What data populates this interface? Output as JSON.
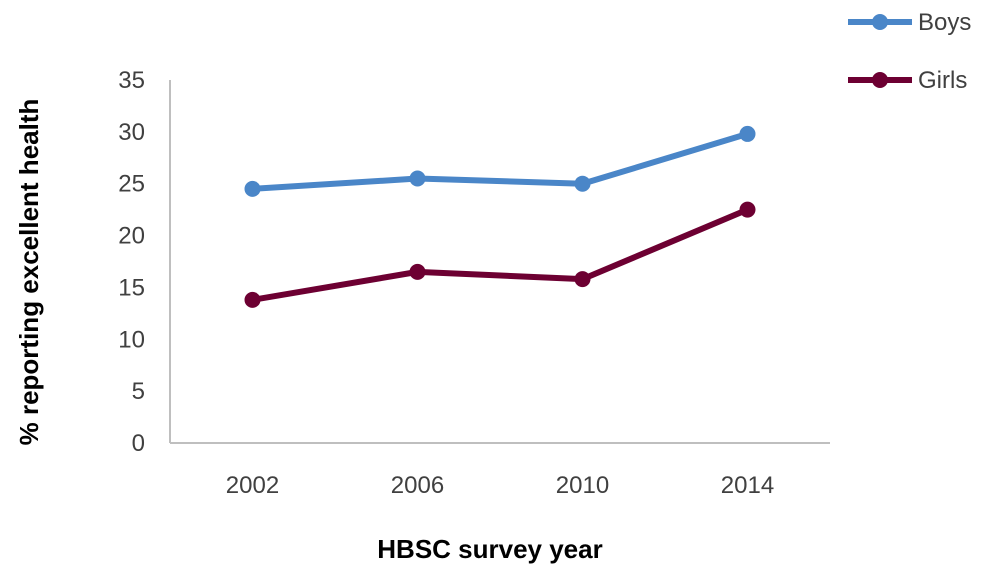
{
  "chart_data": {
    "type": "line",
    "title": "",
    "xlabel": "HBSC survey year",
    "ylabel": "% reporting excellent health",
    "categories": [
      "2002",
      "2006",
      "2010",
      "2014"
    ],
    "ylim": [
      0,
      35
    ],
    "yticks": [
      "0",
      "5",
      "10",
      "15",
      "20",
      "25",
      "30",
      "35"
    ],
    "grid": false,
    "legend_position": "top-right",
    "series": [
      {
        "name": "Boys",
        "color": "#4a86c8",
        "values": [
          24.5,
          25.5,
          25.0,
          29.8
        ]
      },
      {
        "name": "Girls",
        "color": "#6d0032",
        "values": [
          13.8,
          16.5,
          15.8,
          22.5
        ]
      }
    ]
  }
}
